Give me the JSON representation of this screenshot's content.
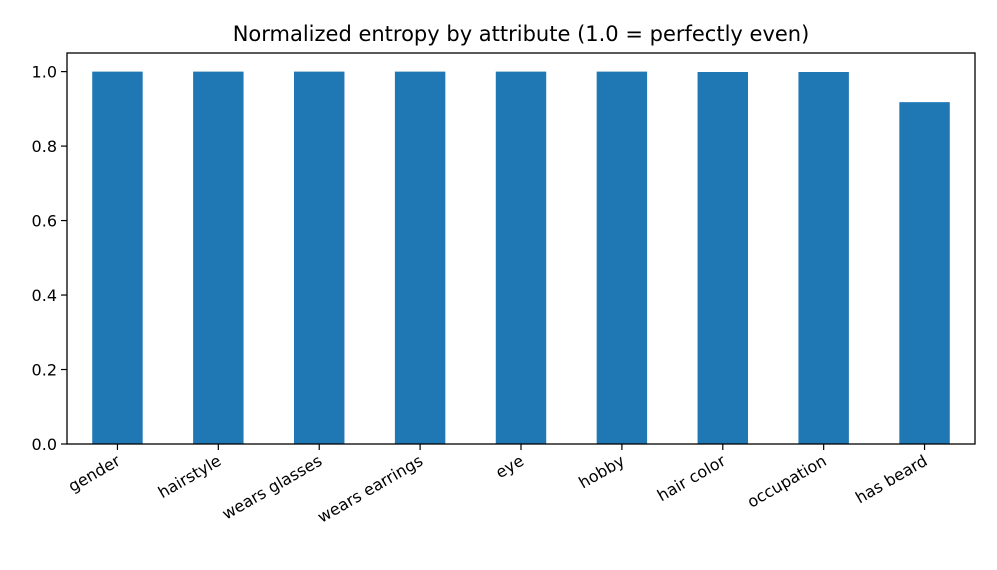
{
  "chart_data": {
    "type": "bar",
    "title": "Normalized entropy by attribute (1.0 = perfectly even)",
    "xlabel": "",
    "ylabel": "",
    "categories": [
      "gender",
      "hairstyle",
      "wears glasses",
      "wears earrings",
      "eye",
      "hobby",
      "hair color",
      "occupation",
      "has beard"
    ],
    "values": [
      1.0,
      1.0,
      1.0,
      1.0,
      1.0,
      1.0,
      0.999,
      0.999,
      0.918
    ],
    "ylim": [
      0,
      1.05
    ],
    "yticks": [
      "0.0",
      "0.2",
      "0.4",
      "0.6",
      "0.8",
      "1.0"
    ],
    "grid": false,
    "legend": "none",
    "bar_color": "#1f77b4"
  }
}
